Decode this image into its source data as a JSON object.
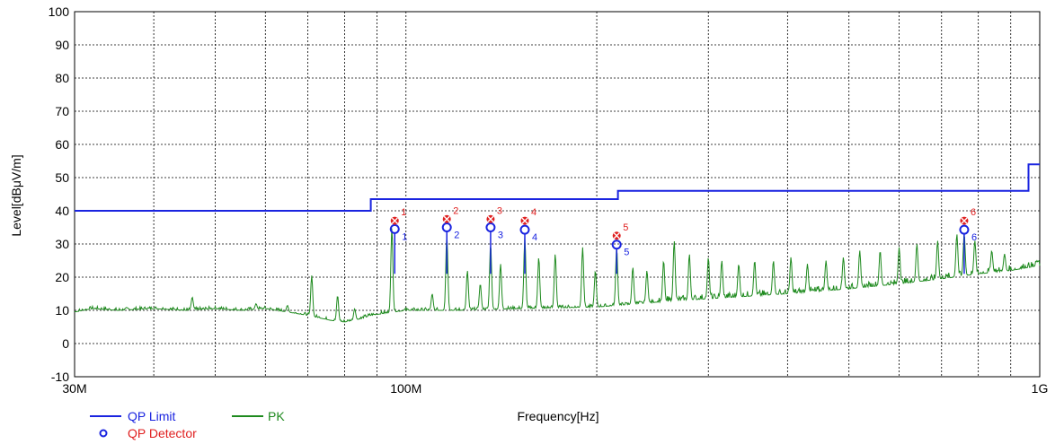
{
  "chart_data": {
    "type": "line",
    "ylabel": "Level[dBμV/m]",
    "xlabel": "Frequency[Hz]",
    "x_scale": "log",
    "xlim": [
      30000000,
      1000000000
    ],
    "ylim": [
      -10,
      100
    ],
    "grid": true,
    "x_tick_labels": [
      {
        "value": 30000000,
        "label": "30M"
      },
      {
        "value": 100000000,
        "label": "100M"
      },
      {
        "value": 1000000000,
        "label": "1G"
      }
    ],
    "y_ticks": [
      {
        "value": 100,
        "label": "100"
      },
      {
        "value": 90,
        "label": "90"
      },
      {
        "value": 80,
        "label": "80"
      },
      {
        "value": 70,
        "label": "70"
      },
      {
        "value": 60,
        "label": "60"
      },
      {
        "value": 50,
        "label": "50"
      },
      {
        "value": 40,
        "label": "40"
      },
      {
        "value": 30,
        "label": "30"
      },
      {
        "value": 20,
        "label": "20"
      },
      {
        "value": 10,
        "label": "10"
      },
      {
        "value": 0,
        "label": "0"
      },
      {
        "value": -10,
        "label": "-10"
      }
    ],
    "colors": {
      "limit": "#1a24e0",
      "pk": "#1e8a1e",
      "qp": "#1a24e0",
      "peak_marker": "#e02020"
    },
    "limit_line": {
      "name": "QP Limit",
      "points": [
        [
          30000000,
          40
        ],
        [
          88000000,
          40
        ],
        [
          88000000,
          43.5
        ],
        [
          216000000,
          43.5
        ],
        [
          216000000,
          46
        ],
        [
          960000000,
          46
        ],
        [
          960000000,
          54
        ],
        [
          1000000000,
          54
        ]
      ]
    },
    "pk_series": {
      "name": "PK",
      "baseline": [
        [
          30000000,
          9.5
        ],
        [
          32000000,
          10.5
        ],
        [
          35000000,
          10
        ],
        [
          40000000,
          10.5
        ],
        [
          45000000,
          10
        ],
        [
          50000000,
          10.5
        ],
        [
          55000000,
          10
        ],
        [
          60000000,
          10.5
        ],
        [
          65000000,
          9.5
        ],
        [
          70000000,
          8.5
        ],
        [
          76000000,
          7
        ],
        [
          80000000,
          6.5
        ],
        [
          85000000,
          7.5
        ],
        [
          88000000,
          8.5
        ],
        [
          100000000,
          10
        ],
        [
          120000000,
          10
        ],
        [
          150000000,
          10.5
        ],
        [
          200000000,
          11
        ],
        [
          250000000,
          12.5
        ],
        [
          300000000,
          13.5
        ],
        [
          400000000,
          15
        ],
        [
          500000000,
          16.5
        ],
        [
          600000000,
          18
        ],
        [
          700000000,
          19.5
        ],
        [
          800000000,
          21
        ],
        [
          900000000,
          22
        ],
        [
          1000000000,
          23.5
        ]
      ],
      "spikes": [
        [
          46000000,
          14
        ],
        [
          58000000,
          12
        ],
        [
          65000000,
          11.5
        ],
        [
          71000000,
          20.5
        ],
        [
          78000000,
          14.5
        ],
        [
          83000000,
          10.5
        ],
        [
          95000000,
          35
        ],
        [
          110000000,
          15
        ],
        [
          116000000,
          33
        ],
        [
          125000000,
          22
        ],
        [
          131000000,
          18
        ],
        [
          136000000,
          30
        ],
        [
          141000000,
          24
        ],
        [
          154000000,
          32
        ],
        [
          162000000,
          26
        ],
        [
          172000000,
          27
        ],
        [
          190000000,
          29
        ],
        [
          199000000,
          22
        ],
        [
          215000000,
          29
        ],
        [
          228000000,
          23
        ],
        [
          240000000,
          22
        ],
        [
          255000000,
          25
        ],
        [
          265000000,
          31
        ],
        [
          280000000,
          27
        ],
        [
          300000000,
          26
        ],
        [
          315000000,
          25
        ],
        [
          335000000,
          24
        ],
        [
          355000000,
          25
        ],
        [
          380000000,
          25
        ],
        [
          405000000,
          26
        ],
        [
          430000000,
          24
        ],
        [
          460000000,
          25
        ],
        [
          490000000,
          26
        ],
        [
          520000000,
          28
        ],
        [
          560000000,
          28
        ],
        [
          600000000,
          29
        ],
        [
          640000000,
          30
        ],
        [
          690000000,
          31
        ],
        [
          740000000,
          33
        ],
        [
          760000000,
          33
        ],
        [
          790000000,
          31
        ],
        [
          840000000,
          28
        ],
        [
          880000000,
          27
        ],
        [
          990000000,
          25
        ]
      ]
    },
    "pk_markers": [
      {
        "label": "1",
        "freq": 96000000,
        "level": 37
      },
      {
        "label": "2",
        "freq": 116000000,
        "level": 37.5
      },
      {
        "label": "3",
        "freq": 136000000,
        "level": 37.5
      },
      {
        "label": "4",
        "freq": 154000000,
        "level": 37
      },
      {
        "label": "5",
        "freq": 215000000,
        "level": 32.5
      },
      {
        "label": "6",
        "freq": 760000000,
        "level": 37
      }
    ],
    "qp_markers": [
      {
        "label": "1",
        "freq": 96000000,
        "level": 34.5
      },
      {
        "label": "2",
        "freq": 116000000,
        "level": 35
      },
      {
        "label": "3",
        "freq": 136000000,
        "level": 35
      },
      {
        "label": "4",
        "freq": 154000000,
        "level": 34.3
      },
      {
        "label": "5",
        "freq": 215000000,
        "level": 29.8
      },
      {
        "label": "6",
        "freq": 760000000,
        "level": 34.3
      }
    ],
    "legend": [
      {
        "key": "limit",
        "label": "QP Limit"
      },
      {
        "key": "pk",
        "label": "PK"
      },
      {
        "key": "qp",
        "label": "QP Detector"
      }
    ]
  }
}
